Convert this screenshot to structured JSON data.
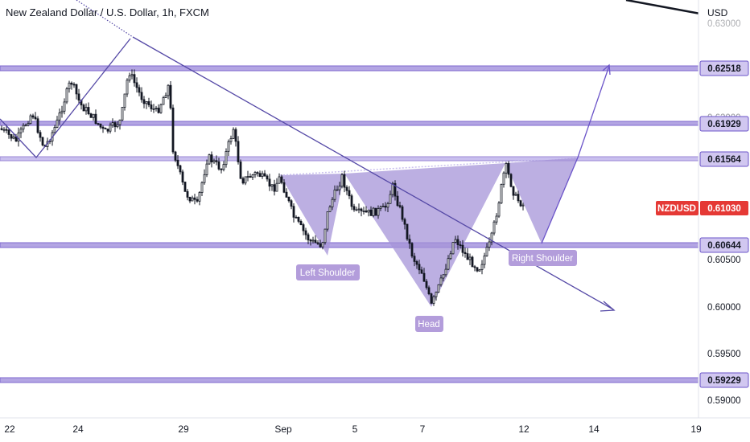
{
  "chart_data": {
    "type": "candlestick",
    "title": "New Zealand Dollar / U.S. Dollar, 1h, FXCM",
    "currency": "USD",
    "symbol": "NZDUSD",
    "current_price": "0.61030",
    "x_ticks": [
      "22",
      "24",
      "29",
      "Sep",
      "5",
      "7",
      "12",
      "14",
      "19"
    ],
    "y_ticks": [
      "0.59000",
      "0.59500",
      "0.60000",
      "0.60500",
      "0.62000",
      "0.63000"
    ],
    "ylim": [
      0.5885,
      0.632
    ],
    "levels": [
      {
        "value": 0.62518,
        "label": "0.62518"
      },
      {
        "value": 0.61929,
        "label": "0.61929"
      },
      {
        "value": 0.61564,
        "label": "0.61564"
      },
      {
        "value": 0.60644,
        "label": "0.60644"
      },
      {
        "value": 0.59229,
        "label": "0.59229"
      }
    ],
    "annotations": [
      {
        "label": "Left Shoulder"
      },
      {
        "label": "Head"
      },
      {
        "label": "Right Shoulder"
      }
    ],
    "colors": {
      "level_line": "#9c8ad6",
      "level_border": "#6b54c9",
      "pattern_fill": "#a594d8",
      "trend_line": "#5549a6",
      "label_bg": "#b39ddb",
      "current_bg": "#e53935",
      "candle": "#131722"
    }
  }
}
